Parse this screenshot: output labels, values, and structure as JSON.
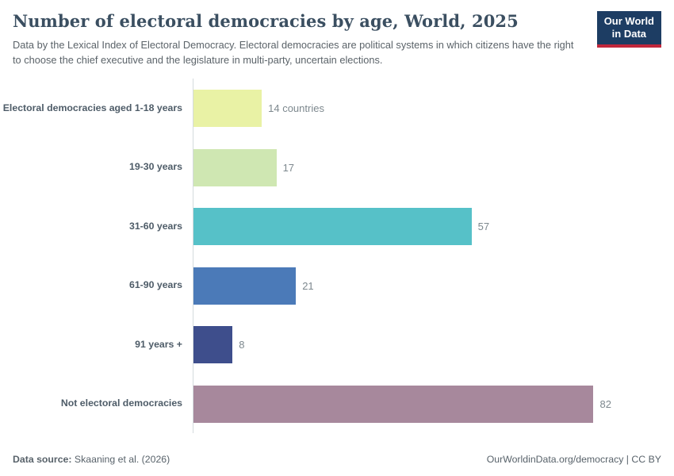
{
  "header": {
    "title": "Number of electoral democracies by age, World, 2025",
    "subtitle": "Data by the Lexical Index of Electoral Democracy. Electoral democracies are political systems in which citizens have the right to choose the chief executive and the legislature in multi-party, uncertain elections.",
    "logo": {
      "line1": "Our World",
      "line2": "in Data"
    }
  },
  "chart_data": {
    "type": "bar",
    "orientation": "horizontal",
    "title": "Number of electoral democracies by age, World, 2025",
    "categories": [
      "Electoral democracies aged 1-18 years",
      "19-30 years",
      "31-60 years",
      "61-90 years",
      "91 years +",
      "Not electoral democracies"
    ],
    "values": [
      14,
      17,
      57,
      21,
      8,
      82
    ],
    "value_labels": [
      "14 countries",
      "17",
      "57",
      "21",
      "8",
      "82"
    ],
    "colors": [
      "#e9f2a5",
      "#cfe7b2",
      "#56c1c8",
      "#4b7ab8",
      "#3e4e8c",
      "#a7889c"
    ],
    "xlim": [
      0,
      92
    ],
    "grid": false,
    "legend": "none"
  },
  "footer": {
    "source_label": "Data source:",
    "source_value": " Skaaning et al. (2026)",
    "right": "OurWorldinData.org/democracy | CC BY"
  }
}
